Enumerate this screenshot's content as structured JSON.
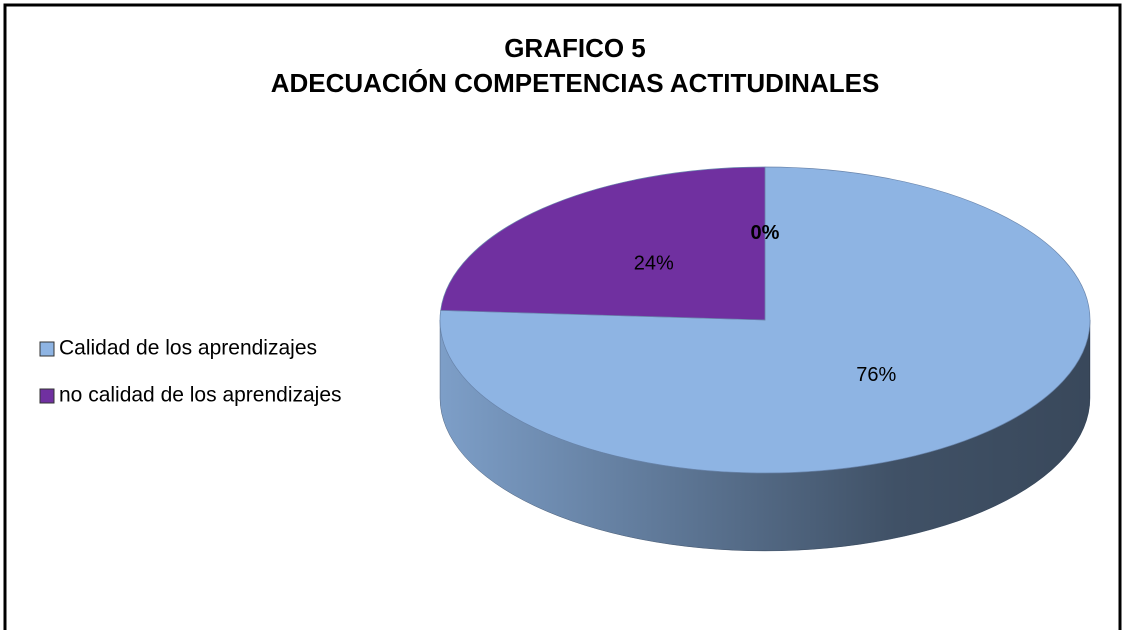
{
  "chart_data": {
    "type": "pie",
    "title": [
      "GRAFICO 5",
      "ADECUACIÓN COMPETENCIAS ACTITUDINALES"
    ],
    "categories": [
      "Calidad de los aprendizajes",
      "no calidad de los aprendizajes",
      null
    ],
    "values": [
      76,
      24,
      0
    ],
    "value_labels": [
      "76%",
      "24%",
      "0%"
    ],
    "colors": [
      "#8eb4e3",
      "#7030a0",
      "#9bbb59"
    ],
    "legend": "left"
  }
}
